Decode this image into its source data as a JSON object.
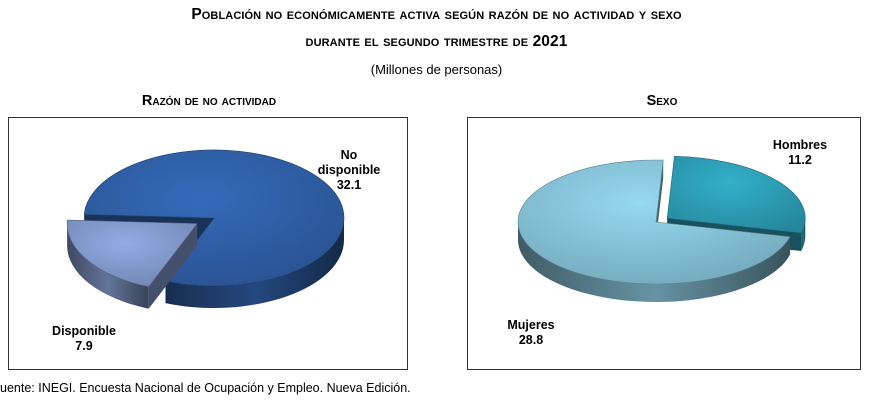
{
  "header": {
    "title_line1": "Población no económicamente activa según razón de no actividad y sexo",
    "title_line2": "durante el segundo trimestre de 2021",
    "subtitle": "(Millones de personas)"
  },
  "footnote": "uente: INEGI. Encuesta Nacional de Ocupación y Empleo. Nueva Edición.",
  "colors": {
    "no_disponible": "#2d5a9e",
    "disponible": "#7c92c2",
    "hombres": "#2a95ab",
    "mujeres": "#7fb8cc"
  },
  "chart_data": [
    {
      "type": "pie",
      "title": "Razón de no actividad",
      "categories": [
        "No disponible",
        "Disponible"
      ],
      "values": [
        32.1,
        7.9
      ],
      "label_lines": [
        [
          "No",
          "disponible",
          "32.1"
        ],
        [
          "Disponible",
          "7.9"
        ]
      ],
      "exploded": "Disponible"
    },
    {
      "type": "pie",
      "title": "Sexo",
      "categories": [
        "Hombres",
        "Mujeres"
      ],
      "values": [
        11.2,
        28.8
      ],
      "label_lines": [
        [
          "Hombres",
          "11.2"
        ],
        [
          "Mujeres",
          "28.8"
        ]
      ],
      "exploded": "Hombres"
    }
  ]
}
